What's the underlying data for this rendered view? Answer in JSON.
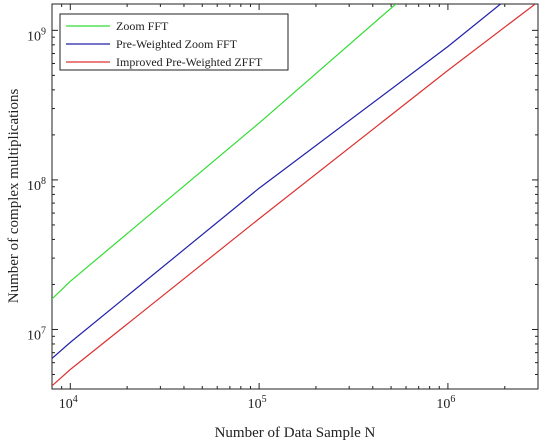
{
  "chart_data": {
    "type": "line",
    "title": "",
    "xlabel": "Number of Data Sample N",
    "ylabel": "Number of complex multiplications",
    "xscale": "log",
    "yscale": "log",
    "xlim": [
      8000,
      3000000
    ],
    "ylim": [
      4000000,
      1500000000
    ],
    "grid": false,
    "legend_position": "top-left",
    "x_ticks": [
      {
        "value": 10000,
        "base": "10",
        "exp": "4"
      },
      {
        "value": 100000,
        "base": "10",
        "exp": "5"
      },
      {
        "value": 1000000,
        "base": "10",
        "exp": "6"
      }
    ],
    "y_ticks": [
      {
        "value": 10000000,
        "base": "10",
        "exp": "7"
      },
      {
        "value": 100000000,
        "base": "10",
        "exp": "8"
      },
      {
        "value": 1000000000,
        "base": "10",
        "exp": "9"
      }
    ],
    "series": [
      {
        "name": "Zoom FFT",
        "color": "#33dd33",
        "x": [
          8000,
          10000,
          100000,
          530000
        ],
        "y": [
          16000000,
          21000000,
          240000000,
          1500000000
        ]
      },
      {
        "name": "Pre-Weighted Zoom FFT",
        "color": "#2222aa",
        "x": [
          8000,
          10000,
          100000,
          1000000,
          1900000
        ],
        "y": [
          6400000,
          8200000,
          88000000,
          780000000,
          1500000000
        ]
      },
      {
        "name": "Improved Pre-Weighted ZFFT",
        "color": "#dd3333",
        "x": [
          8000,
          10000,
          100000,
          1000000,
          2900000
        ],
        "y": [
          4200000,
          5400000,
          55000000,
          540000000,
          1500000000
        ]
      }
    ]
  }
}
